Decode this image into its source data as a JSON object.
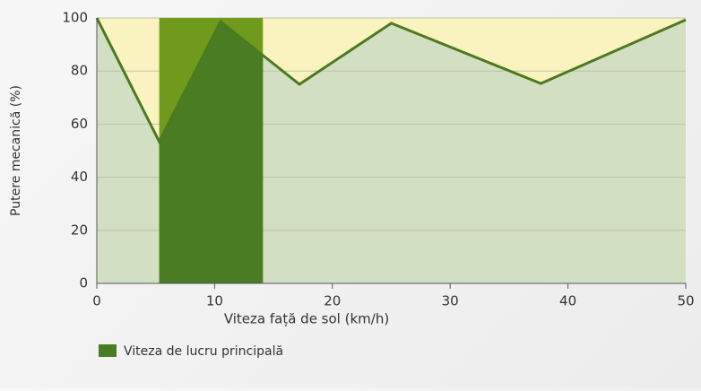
{
  "chart_data": {
    "type": "line",
    "x": [
      0,
      5.3,
      10.5,
      17.2,
      25,
      37.7,
      50
    ],
    "series": [
      {
        "name": "Putere mecanică",
        "color": "#4b7a1f",
        "values": [
          100,
          53.4,
          98.6,
          75,
          98,
          75.3,
          99.3
        ]
      }
    ],
    "highlight": {
      "name": "Viteza de lucru principală",
      "color": "#4a7d23",
      "xrange": [
        5.3,
        14.1
      ]
    },
    "xlabel": "Viteza față de sol (km/h)",
    "ylabel": "Putere mecanică (%)",
    "xlim": [
      0,
      50
    ],
    "ylim": [
      0,
      100
    ],
    "xticks": [
      0,
      10,
      20,
      30,
      40,
      50
    ],
    "yticks": [
      0,
      20,
      40,
      60,
      80,
      100
    ],
    "grid": true
  }
}
